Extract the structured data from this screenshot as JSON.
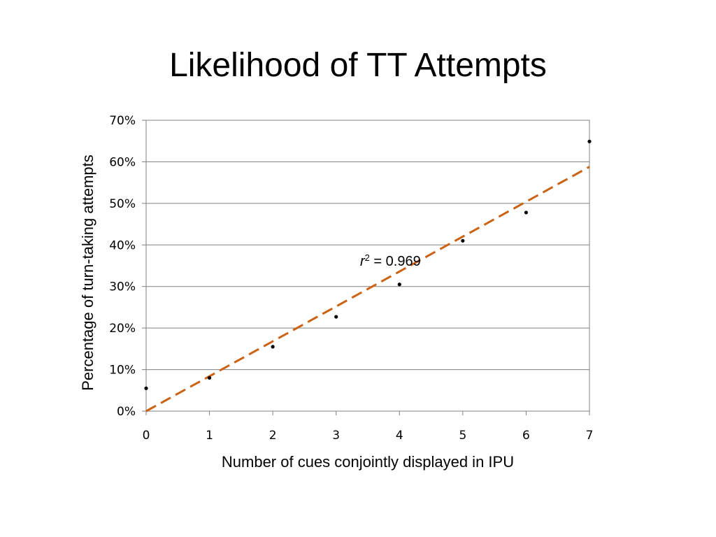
{
  "slide": {
    "title": "Likelihood of TT Attempts"
  },
  "chart_data": {
    "type": "scatter",
    "xlabel": "Number of cues conjointly displayed in IPU",
    "ylabel": "Percentage of turn-taking attempts",
    "xlim": [
      0,
      7
    ],
    "ylim": [
      0,
      70
    ],
    "x_ticks": [
      "0",
      "1",
      "2",
      "3",
      "4",
      "5",
      "6",
      "7"
    ],
    "y_ticks": [
      "0%",
      "10%",
      "20%",
      "30%",
      "40%",
      "50%",
      "60%",
      "70%"
    ],
    "grid": "horizontal",
    "series": [
      {
        "x": [
          0,
          1,
          2,
          3,
          4,
          5,
          6,
          7
        ],
        "y": [
          5.5,
          8,
          15.5,
          22.7,
          30.5,
          41,
          47.8,
          64.9
        ],
        "color": "#000000"
      }
    ],
    "trendline": {
      "type": "linear",
      "from": [
        0,
        0
      ],
      "to": [
        7,
        58.8
      ],
      "style": "dashed",
      "color": "#CC6214"
    },
    "annotation": {
      "r_symbol": "r",
      "r_sup": "2",
      "eq": " = 0.969",
      "at": [
        3.4,
        36
      ]
    }
  }
}
